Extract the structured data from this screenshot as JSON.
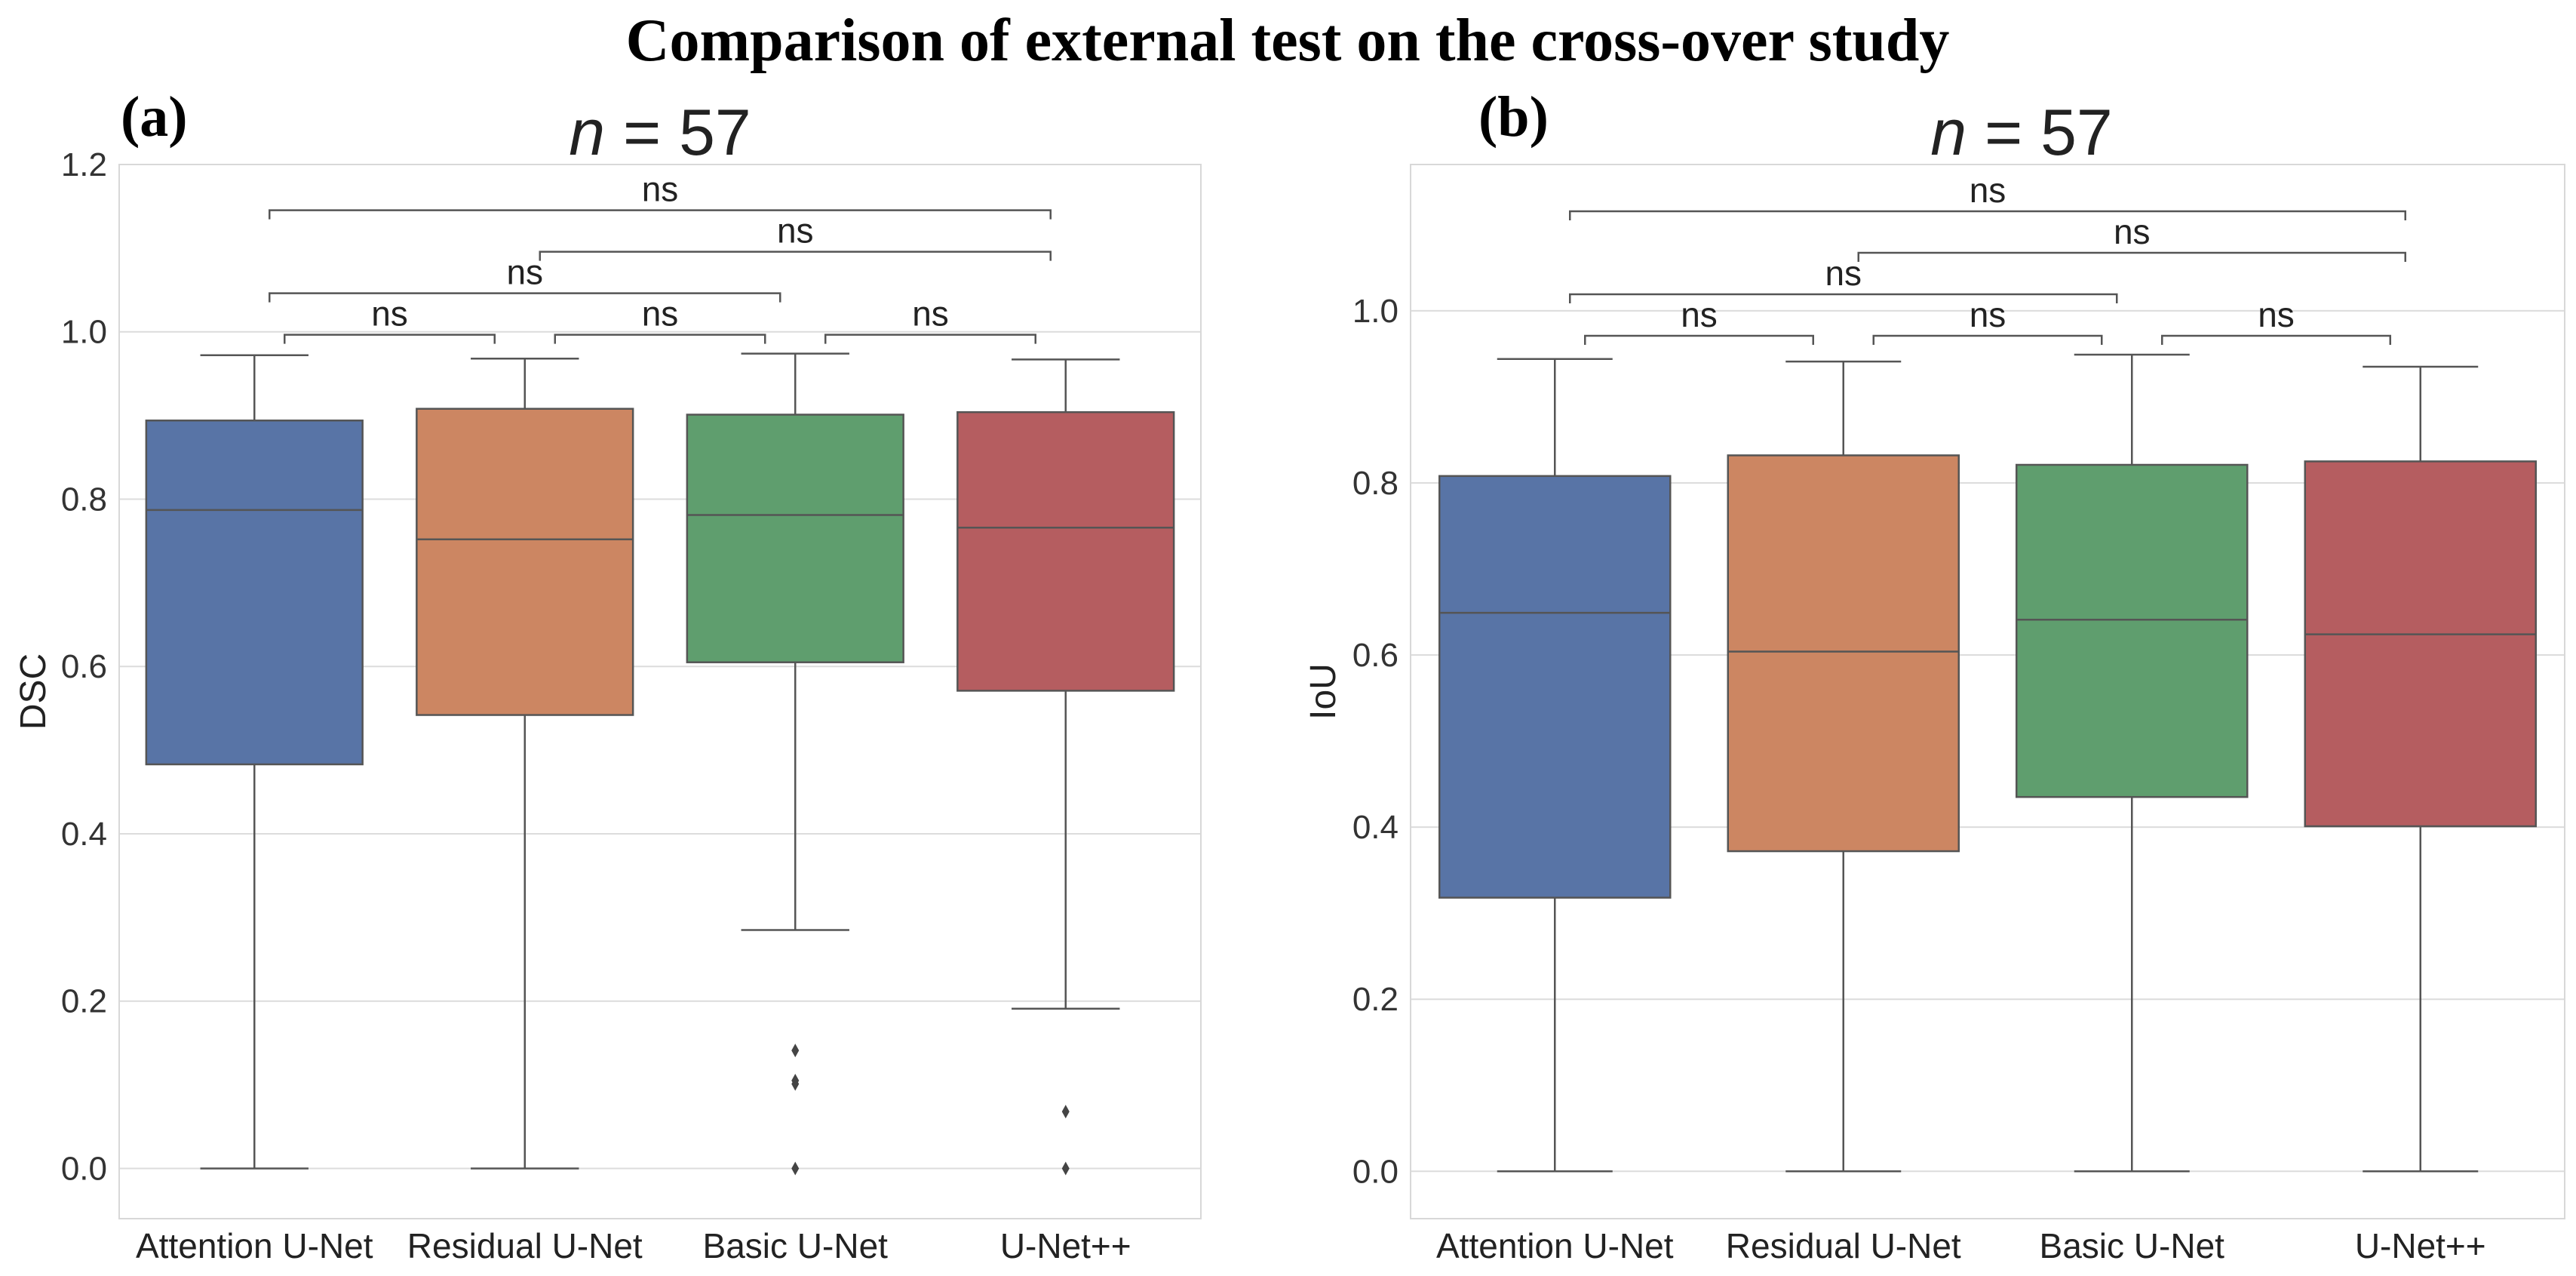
{
  "figure_title": "Comparison of external test on the cross-over study",
  "chart_data": [
    {
      "type": "box",
      "panel_label": "(a)",
      "title_prefix": "n",
      "title_suffix": " = 57",
      "ylabel": "DSC",
      "xlabel": "",
      "ylim": [
        -0.06,
        1.2
      ],
      "yticks": [
        0.0,
        0.2,
        0.4,
        0.6,
        0.8,
        1.0,
        1.2
      ],
      "ytick_labels": [
        "0.0",
        "0.2",
        "0.4",
        "0.6",
        "0.8",
        "1.0",
        "1.2"
      ],
      "grid": true,
      "categories": [
        "Attention U-Net",
        "Residual U-Net",
        "Basic U-Net",
        "U-Net++"
      ],
      "series": [
        {
          "name": "Attention U-Net",
          "color": "#5874a6",
          "whisker_low": 0.0,
          "q1": 0.483,
          "median": 0.787,
          "q3": 0.894,
          "whisker_high": 0.972,
          "outliers": []
        },
        {
          "name": "Residual U-Net",
          "color": "#cc8662",
          "whisker_low": 0.0,
          "q1": 0.542,
          "median": 0.752,
          "q3": 0.908,
          "whisker_high": 0.968,
          "outliers": []
        },
        {
          "name": "Basic U-Net",
          "color": "#5f9e6e",
          "whisker_low": 0.285,
          "q1": 0.605,
          "median": 0.781,
          "q3": 0.901,
          "whisker_high": 0.974,
          "outliers": [
            0.141,
            0.105,
            0.101,
            0.0
          ]
        },
        {
          "name": "U-Net++",
          "color": "#b55d60",
          "whisker_low": 0.191,
          "q1": 0.571,
          "median": 0.766,
          "q3": 0.904,
          "whisker_high": 0.967,
          "outliers": [
            0.068,
            0.0
          ]
        }
      ],
      "comparisons": [
        {
          "from": 0,
          "to": 1,
          "label": "ns",
          "level": 0
        },
        {
          "from": 1,
          "to": 2,
          "label": "ns",
          "level": 0
        },
        {
          "from": 2,
          "to": 3,
          "label": "ns",
          "level": 0
        },
        {
          "from": 0,
          "to": 2,
          "label": "ns",
          "level": 1
        },
        {
          "from": 1,
          "to": 3,
          "label": "ns",
          "level": 2
        },
        {
          "from": 0,
          "to": 3,
          "label": "ns",
          "level": 3
        }
      ]
    },
    {
      "type": "box",
      "panel_label": "(b)",
      "title_prefix": "n",
      "title_suffix": " = 57",
      "ylabel": "IoU",
      "xlabel": "",
      "ylim": [
        -0.055,
        1.17
      ],
      "yticks": [
        0.0,
        0.2,
        0.4,
        0.6,
        0.8,
        1.0
      ],
      "ytick_labels": [
        "0.0",
        "0.2",
        "0.4",
        "0.6",
        "0.8",
        "1.0"
      ],
      "grid": true,
      "categories": [
        "Attention U-Net",
        "Residual U-Net",
        "Basic U-Net",
        "U-Net++"
      ],
      "series": [
        {
          "name": "Attention U-Net",
          "color": "#5874a6",
          "whisker_low": 0.0,
          "q1": 0.318,
          "median": 0.649,
          "q3": 0.808,
          "whisker_high": 0.944,
          "outliers": []
        },
        {
          "name": "Residual U-Net",
          "color": "#cc8662",
          "whisker_low": 0.0,
          "q1": 0.372,
          "median": 0.604,
          "q3": 0.832,
          "whisker_high": 0.941,
          "outliers": []
        },
        {
          "name": "Basic U-Net",
          "color": "#5f9e6e",
          "whisker_low": 0.0,
          "q1": 0.435,
          "median": 0.641,
          "q3": 0.821,
          "whisker_high": 0.949,
          "outliers": []
        },
        {
          "name": "U-Net++",
          "color": "#b55d60",
          "whisker_low": 0.0,
          "q1": 0.401,
          "median": 0.624,
          "q3": 0.825,
          "whisker_high": 0.935,
          "outliers": []
        }
      ],
      "comparisons": [
        {
          "from": 0,
          "to": 1,
          "label": "ns",
          "level": 0
        },
        {
          "from": 1,
          "to": 2,
          "label": "ns",
          "level": 0
        },
        {
          "from": 2,
          "to": 3,
          "label": "ns",
          "level": 0
        },
        {
          "from": 0,
          "to": 2,
          "label": "ns",
          "level": 1
        },
        {
          "from": 1,
          "to": 3,
          "label": "ns",
          "level": 2
        },
        {
          "from": 0,
          "to": 3,
          "label": "ns",
          "level": 3
        }
      ]
    }
  ]
}
